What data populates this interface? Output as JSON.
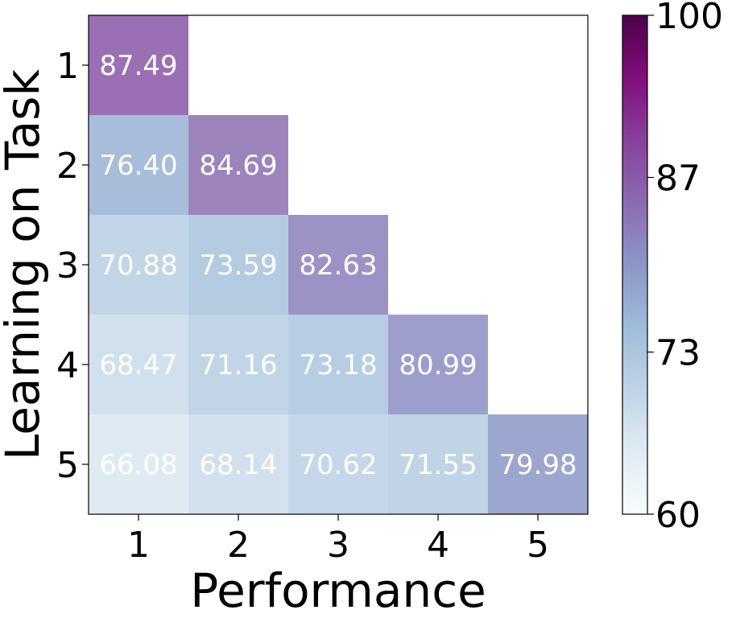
{
  "chart_data": {
    "type": "heatmap",
    "xlabel": "Performance",
    "ylabel": "Learning on Task",
    "x_categories": [
      "1",
      "2",
      "3",
      "4",
      "5"
    ],
    "y_categories": [
      "1",
      "2",
      "3",
      "4",
      "5"
    ],
    "cells": [
      {
        "row": 1,
        "col": 1,
        "value": 87.49,
        "label": "87.49"
      },
      {
        "row": 2,
        "col": 1,
        "value": 76.4,
        "label": "76.40"
      },
      {
        "row": 2,
        "col": 2,
        "value": 84.69,
        "label": "84.69"
      },
      {
        "row": 3,
        "col": 1,
        "value": 70.88,
        "label": "70.88"
      },
      {
        "row": 3,
        "col": 2,
        "value": 73.59,
        "label": "73.59"
      },
      {
        "row": 3,
        "col": 3,
        "value": 82.63,
        "label": "82.63"
      },
      {
        "row": 4,
        "col": 1,
        "value": 68.47,
        "label": "68.47"
      },
      {
        "row": 4,
        "col": 2,
        "value": 71.16,
        "label": "71.16"
      },
      {
        "row": 4,
        "col": 3,
        "value": 73.18,
        "label": "73.18"
      },
      {
        "row": 4,
        "col": 4,
        "value": 80.99,
        "label": "80.99"
      },
      {
        "row": 5,
        "col": 1,
        "value": 66.08,
        "label": "66.08"
      },
      {
        "row": 5,
        "col": 2,
        "value": 68.14,
        "label": "68.14"
      },
      {
        "row": 5,
        "col": 3,
        "value": 70.62,
        "label": "70.62"
      },
      {
        "row": 5,
        "col": 4,
        "value": 71.55,
        "label": "71.55"
      },
      {
        "row": 5,
        "col": 5,
        "value": 79.98,
        "label": "79.98"
      }
    ],
    "colorbar": {
      "range": [
        60,
        100
      ],
      "ticks": [
        60,
        73,
        87,
        100
      ],
      "tick_labels": [
        "60",
        "73",
        "87",
        "100"
      ],
      "colormap": "BuPu",
      "colors": [
        "#f7fcfd",
        "#e0ecf4",
        "#bfd3e6",
        "#9ebcda",
        "#8c96c6",
        "#8c6bb1",
        "#88419d",
        "#810f7c",
        "#4d004b"
      ]
    },
    "legend": "colorbar-right",
    "grid": false
  }
}
